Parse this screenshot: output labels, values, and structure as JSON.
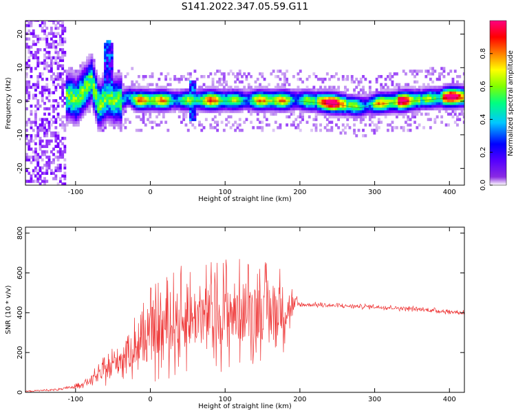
{
  "figure": {
    "title": "S141.2022.347.05.59.G11"
  },
  "chart_data": [
    {
      "type": "heatmap",
      "xlabel": "Height of straight line (km)",
      "ylabel": "Frequency (Hz)",
      "xlim": [
        -167,
        420
      ],
      "ylim": [
        -25,
        24
      ],
      "x_ticks": [
        -100,
        0,
        100,
        200,
        300,
        400
      ],
      "y_ticks": [
        -20,
        -10,
        0,
        10,
        20
      ],
      "grid": false,
      "colorbar": {
        "label": "Normalized spectral amplitude",
        "range": [
          0,
          1
        ],
        "ticks": [
          0.0,
          0.2,
          0.4,
          0.6,
          0.8
        ],
        "colormap": [
          "#5500ff",
          "#0000ff",
          "#00c8ff",
          "#00ff80",
          "#80ff00",
          "#ffff00",
          "#ff8000",
          "#ff0000",
          "#ff0080"
        ]
      },
      "ridge": {
        "description_free": true,
        "x": [
          -110,
          -100,
          -90,
          -80,
          -70,
          -60,
          -50,
          -40,
          -30,
          -20,
          0,
          50,
          100,
          150,
          200,
          250,
          280,
          300,
          350,
          400,
          420
        ],
        "y": [
          1,
          0,
          3,
          6,
          -2,
          1,
          0,
          0,
          1,
          0,
          0,
          0,
          0,
          0,
          0,
          -1,
          -2,
          -1,
          0,
          1,
          1
        ]
      }
    },
    {
      "type": "line",
      "xlabel": "Height of straight line (km)",
      "ylabel": "SNR (10 * v/v)",
      "xlim": [
        -167,
        420
      ],
      "ylim": [
        0,
        830
      ],
      "x_ticks": [
        -100,
        0,
        100,
        200,
        300,
        400
      ],
      "y_ticks": [
        0,
        200,
        400,
        600,
        800
      ],
      "grid": false,
      "series": [
        {
          "color": "#ee3333",
          "envelope_x": [
            -167,
            -120,
            -100,
            -80,
            -60,
            -40,
            -20,
            0,
            20,
            40,
            60,
            80,
            100,
            120,
            140,
            160,
            180,
            195,
            200,
            220,
            250,
            300,
            350,
            400,
            420
          ],
          "envelope_mean": [
            5,
            15,
            30,
            60,
            110,
            170,
            230,
            290,
            330,
            360,
            380,
            390,
            400,
            400,
            410,
            410,
            420,
            440,
            440,
            440,
            435,
            430,
            420,
            405,
            400
          ],
          "envelope_amp": [
            5,
            8,
            15,
            35,
            80,
            130,
            180,
            250,
            270,
            280,
            270,
            280,
            300,
            280,
            270,
            260,
            220,
            60,
            20,
            15,
            15,
            15,
            15,
            15,
            15
          ]
        }
      ]
    }
  ]
}
